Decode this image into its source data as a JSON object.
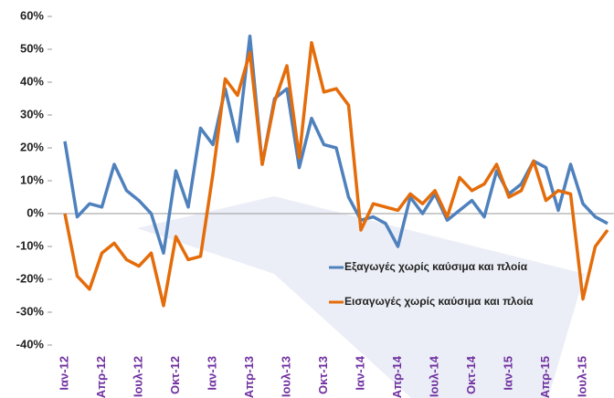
{
  "chart_data": {
    "type": "line",
    "categories": [
      "Ιαν-12",
      null,
      null,
      "Απρ-12",
      null,
      null,
      "Ιουλ-12",
      null,
      null,
      "Οκτ-12",
      null,
      null,
      "Ιαν-13",
      null,
      null,
      "Απρ-13",
      null,
      null,
      "Ιουλ-13",
      null,
      null,
      "Οκτ-13",
      null,
      null,
      "Ιαν-14",
      null,
      null,
      "Απρ-14",
      null,
      null,
      "Ιουλ-14",
      null,
      null,
      "Οκτ-14",
      null,
      null,
      "Ιαν-15",
      null,
      null,
      "Απρ-15",
      null,
      null,
      "Ιουλ-15",
      null,
      null
    ],
    "series": [
      {
        "name": "Εξαγωγές χωρίς καύσιμα και πλοία",
        "color": "#4f81bd",
        "values": [
          22,
          -1,
          3,
          2,
          15,
          7,
          4,
          0,
          -12,
          13,
          2,
          26,
          21,
          38,
          22,
          54,
          15,
          35,
          38,
          14,
          29,
          21,
          20,
          5,
          -2,
          -1,
          -3,
          -10,
          5,
          0,
          6,
          -2,
          1,
          4,
          -1,
          13,
          6,
          9,
          16,
          14,
          1,
          15,
          3,
          -1,
          -3
        ]
      },
      {
        "name": "Εισαγωγές χωρίς καύσιμα και πλοία",
        "color": "#e46c0a",
        "values": [
          0,
          -19,
          -23,
          -12,
          -9,
          -14,
          -16,
          -12,
          -28,
          -7,
          -14,
          -13,
          12,
          41,
          36,
          49,
          15,
          34,
          45,
          17,
          52,
          37,
          38,
          33,
          -5,
          3,
          2,
          1,
          6,
          3,
          7,
          -1,
          11,
          7,
          9,
          15,
          5,
          7,
          16,
          4,
          7,
          6,
          -26,
          -10,
          -5
        ]
      }
    ],
    "ylim": [
      -40,
      60
    ],
    "yticks": [
      {
        "value": -40,
        "label": "-40%"
      },
      {
        "value": -30,
        "label": "-30%"
      },
      {
        "value": -20,
        "label": "-20%"
      },
      {
        "value": -10,
        "label": "-10%"
      },
      {
        "value": 0,
        "label": "0%"
      },
      {
        "value": 10,
        "label": "10%"
      },
      {
        "value": 20,
        "label": "20%"
      },
      {
        "value": 30,
        "label": "30%"
      },
      {
        "value": 40,
        "label": "40%"
      },
      {
        "value": 50,
        "label": "50%"
      },
      {
        "value": 60,
        "label": "60%"
      }
    ]
  }
}
